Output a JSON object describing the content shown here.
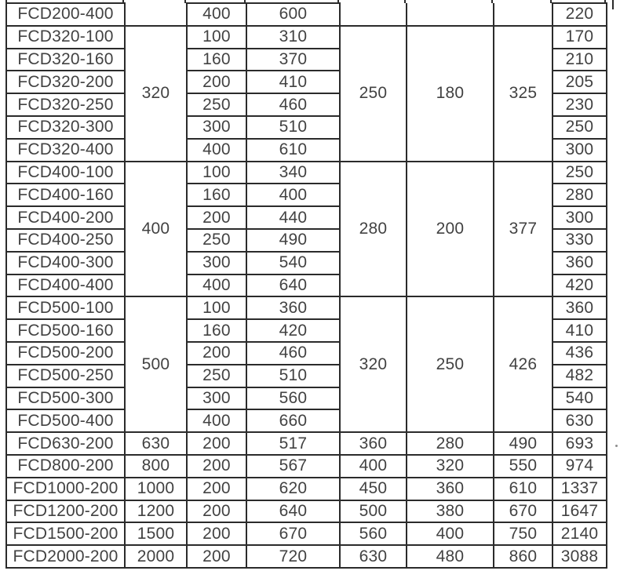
{
  "colors": {
    "border": "#2b2b2b",
    "text": "#424242",
    "background": "#ffffff"
  },
  "table": {
    "sections": [
      {
        "type": "partial",
        "rows": [
          {
            "model": "FCD200-400",
            "c3": "400",
            "c4": "600",
            "c8": "220"
          }
        ]
      },
      {
        "type": "group",
        "c2": "320",
        "c5": "250",
        "c6": "180",
        "c7": "325",
        "rows": [
          {
            "model": "FCD320-100",
            "c3": "100",
            "c4": "310",
            "c8": "170"
          },
          {
            "model": "FCD320-160",
            "c3": "160",
            "c4": "370",
            "c8": "210"
          },
          {
            "model": "FCD320-200",
            "c3": "200",
            "c4": "410",
            "c8": "205"
          },
          {
            "model": "FCD320-250",
            "c3": "250",
            "c4": "460",
            "c8": "230"
          },
          {
            "model": "FCD320-300",
            "c3": "300",
            "c4": "510",
            "c8": "250"
          },
          {
            "model": "FCD320-400",
            "c3": "400",
            "c4": "610",
            "c8": "300"
          }
        ]
      },
      {
        "type": "group",
        "c2": "400",
        "c5": "280",
        "c6": "200",
        "c7": "377",
        "rows": [
          {
            "model": "FCD400-100",
            "c3": "100",
            "c4": "340",
            "c8": "250"
          },
          {
            "model": "FCD400-160",
            "c3": "160",
            "c4": "400",
            "c8": "280"
          },
          {
            "model": "FCD400-200",
            "c3": "200",
            "c4": "440",
            "c8": "300"
          },
          {
            "model": "FCD400-250",
            "c3": "250",
            "c4": "490",
            "c8": "330"
          },
          {
            "model": "FCD400-300",
            "c3": "300",
            "c4": "540",
            "c8": "360"
          },
          {
            "model": "FCD400-400",
            "c3": "400",
            "c4": "640",
            "c8": "420"
          }
        ]
      },
      {
        "type": "group",
        "c2": "500",
        "c5": "320",
        "c6": "250",
        "c7": "426",
        "rows": [
          {
            "model": "FCD500-100",
            "c3": "100",
            "c4": "360",
            "c8": "360"
          },
          {
            "model": "FCD500-160",
            "c3": "160",
            "c4": "420",
            "c8": "410"
          },
          {
            "model": "FCD500-200",
            "c3": "200",
            "c4": "460",
            "c8": "436"
          },
          {
            "model": "FCD500-250",
            "c3": "250",
            "c4": "510",
            "c8": "482"
          },
          {
            "model": "FCD500-300",
            "c3": "300",
            "c4": "560",
            "c8": "540"
          },
          {
            "model": "FCD500-400",
            "c3": "400",
            "c4": "660",
            "c8": "630"
          }
        ]
      },
      {
        "type": "singles",
        "rows": [
          {
            "model": "FCD630-200",
            "c2": "630",
            "c3": "200",
            "c4": "517",
            "c5": "360",
            "c6": "280",
            "c7": "490",
            "c8": "693"
          },
          {
            "model": "FCD800-200",
            "c2": "800",
            "c3": "200",
            "c4": "567",
            "c5": "400",
            "c6": "320",
            "c7": "550",
            "c8": "974"
          },
          {
            "model": "FCD1000-200",
            "c2": "1000",
            "c3": "200",
            "c4": "620",
            "c5": "450",
            "c6": "360",
            "c7": "610",
            "c8": "1337"
          },
          {
            "model": "FCD1200-200",
            "c2": "1200",
            "c3": "200",
            "c4": "640",
            "c5": "500",
            "c6": "380",
            "c7": "670",
            "c8": "1647"
          },
          {
            "model": "FCD1500-200",
            "c2": "1500",
            "c3": "200",
            "c4": "670",
            "c5": "560",
            "c6": "400",
            "c7": "750",
            "c8": "2140"
          },
          {
            "model": "FCD2000-200",
            "c2": "2000",
            "c3": "200",
            "c4": "720",
            "c5": "630",
            "c6": "480",
            "c7": "860",
            "c8": "3088"
          }
        ]
      }
    ]
  }
}
